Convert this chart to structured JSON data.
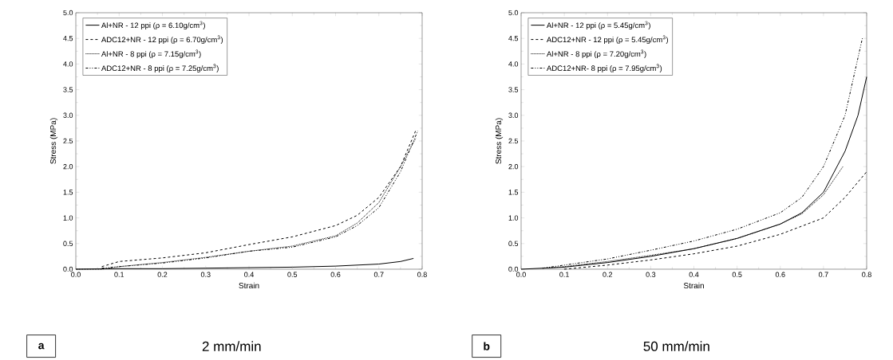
{
  "chart_data": [
    {
      "type": "line",
      "xlabel": "Strain",
      "ylabel": "Stress (MPa)",
      "annotations": [
        "a",
        "2 mm/min"
      ],
      "legend": "top left",
      "xlim": [
        0,
        0.8
      ],
      "ylim": [
        0,
        5
      ],
      "xticks": [
        {
          "value": 0,
          "label": "0.0"
        },
        {
          "value": 0.1,
          "label": "0.1"
        },
        {
          "value": 0.2,
          "label": "0.2"
        },
        {
          "value": 0.3,
          "label": "0.3"
        },
        {
          "value": 0.4,
          "label": "0.4"
        },
        {
          "value": 0.5,
          "label": "0.5"
        },
        {
          "value": 0.6,
          "label": "0.6"
        },
        {
          "value": 0.7,
          "label": "0.7"
        },
        {
          "value": 0.8,
          "label": "0.8"
        }
      ],
      "yticks": [
        {
          "value": 0,
          "label": "0.0"
        },
        {
          "value": 0.5,
          "label": "0.5"
        },
        {
          "value": 1,
          "label": "1.0"
        },
        {
          "value": 1.5,
          "label": "1.5"
        },
        {
          "value": 2,
          "label": "2.0"
        },
        {
          "value": 2.5,
          "label": "2.5"
        },
        {
          "value": 3,
          "label": "3.0"
        },
        {
          "value": 3.5,
          "label": "3.5"
        },
        {
          "value": 4,
          "label": "4.0"
        },
        {
          "value": 4.5,
          "label": "4.5"
        },
        {
          "value": 5,
          "label": "5.0"
        }
      ],
      "series": [
        {
          "name": "Al+NR - 12 ppi (ρ = 6.10g/cm$^{3}$)",
          "color": "#000000",
          "line_style": "solid",
          "x": [
            0,
            0.1,
            0.2,
            0.3,
            0.4,
            0.5,
            0.6,
            0.7,
            0.75,
            0.78
          ],
          "values": [
            0,
            0.01,
            0.01,
            0.02,
            0.03,
            0.04,
            0.06,
            0.1,
            0.15,
            0.21
          ]
        },
        {
          "name": "ADC12+NR - 12 ppi (ρ = 6.70g/cm$^{3}$)",
          "color": "#000000",
          "line_style": "dashed",
          "x": [
            0.06,
            0.1,
            0.2,
            0.3,
            0.4,
            0.5,
            0.6,
            0.65,
            0.7,
            0.75,
            0.785
          ],
          "values": [
            0.05,
            0.15,
            0.22,
            0.32,
            0.48,
            0.63,
            0.85,
            1.05,
            1.4,
            2.0,
            2.7
          ]
        },
        {
          "name": "Al+NR - 8 ppi (ρ = 7.15g/cm$^{3}$)",
          "color": "#000000",
          "line_style": "dotted",
          "x": [
            0,
            0.06,
            0.1,
            0.2,
            0.3,
            0.4,
            0.5,
            0.6,
            0.65,
            0.7,
            0.75,
            0.785
          ],
          "values": [
            0,
            0,
            0.05,
            0.13,
            0.23,
            0.35,
            0.45,
            0.65,
            0.9,
            1.3,
            2.0,
            2.55
          ]
        },
        {
          "name": "ADC12+NR - 8 ppi (ρ = 7.25g/cm$^{3}$)",
          "color": "#000000",
          "line_style": "dashdot",
          "x": [
            0.06,
            0.1,
            0.2,
            0.3,
            0.4,
            0.5,
            0.6,
            0.65,
            0.7,
            0.75,
            0.79
          ],
          "values": [
            0.02,
            0.05,
            0.12,
            0.22,
            0.35,
            0.43,
            0.63,
            0.85,
            1.2,
            1.9,
            2.7
          ]
        }
      ]
    },
    {
      "type": "line",
      "xlabel": "Strain",
      "ylabel": "Stress (MPa)",
      "annotations": [
        "b",
        "50 mm/min"
      ],
      "legend": "top left",
      "xlim": [
        0,
        0.8
      ],
      "ylim": [
        0,
        5
      ],
      "xticks": [
        {
          "value": 0,
          "label": "0.0"
        },
        {
          "value": 0.1,
          "label": "0.1"
        },
        {
          "value": 0.2,
          "label": "0.2"
        },
        {
          "value": 0.3,
          "label": "0.3"
        },
        {
          "value": 0.4,
          "label": "0.4"
        },
        {
          "value": 0.5,
          "label": "0.5"
        },
        {
          "value": 0.6,
          "label": "0.6"
        },
        {
          "value": 0.7,
          "label": "0.7"
        },
        {
          "value": 0.8,
          "label": "0.8"
        }
      ],
      "yticks": [
        {
          "value": 0,
          "label": "0.0"
        },
        {
          "value": 0.5,
          "label": "0.5"
        },
        {
          "value": 1,
          "label": "1.0"
        },
        {
          "value": 1.5,
          "label": "1.5"
        },
        {
          "value": 2,
          "label": "2.0"
        },
        {
          "value": 2.5,
          "label": "2.5"
        },
        {
          "value": 3,
          "label": "3.0"
        },
        {
          "value": 3.5,
          "label": "3.5"
        },
        {
          "value": 4,
          "label": "4.0"
        },
        {
          "value": 4.5,
          "label": "4.5"
        },
        {
          "value": 5,
          "label": "5.0"
        }
      ],
      "series": [
        {
          "name": "Al+NR - 12 ppi (ρ = 5.45g/cm$^{3}$)",
          "color": "#000000",
          "line_style": "solid",
          "x": [
            0,
            0.1,
            0.2,
            0.3,
            0.4,
            0.5,
            0.6,
            0.65,
            0.7,
            0.75,
            0.78,
            0.8
          ],
          "values": [
            0,
            0.04,
            0.13,
            0.25,
            0.4,
            0.6,
            0.88,
            1.1,
            1.5,
            2.3,
            3.0,
            3.75
          ]
        },
        {
          "name": "ADC12+NR - 12 ppi (ρ = 5.45g/cm$^{3}$)",
          "color": "#000000",
          "line_style": "dashed",
          "x": [
            0.1,
            0.2,
            0.3,
            0.4,
            0.5,
            0.6,
            0.7,
            0.75,
            0.8
          ],
          "values": [
            0,
            0.08,
            0.18,
            0.3,
            0.45,
            0.68,
            1.0,
            1.4,
            1.9
          ]
        },
        {
          "name": "Al+NR - 8 ppi (ρ = 7.20g/cm$^{3}$)",
          "color": "#000000",
          "line_style": "dotted",
          "x": [
            0.05,
            0.1,
            0.2,
            0.3,
            0.4,
            0.5,
            0.6,
            0.65,
            0.7,
            0.745
          ],
          "values": [
            0.02,
            0.05,
            0.15,
            0.27,
            0.4,
            0.6,
            0.88,
            1.08,
            1.45,
            2.0
          ]
        },
        {
          "name": "ADC12+NR- 8 ppi (ρ = 7.95g/cm$^{3}$)",
          "color": "#000000",
          "line_style": "dashdot",
          "x": [
            0.05,
            0.1,
            0.2,
            0.3,
            0.4,
            0.5,
            0.6,
            0.65,
            0.7,
            0.75,
            0.79
          ],
          "values": [
            0.02,
            0.08,
            0.2,
            0.37,
            0.55,
            0.78,
            1.1,
            1.4,
            2.0,
            3.0,
            4.5
          ]
        }
      ]
    }
  ]
}
